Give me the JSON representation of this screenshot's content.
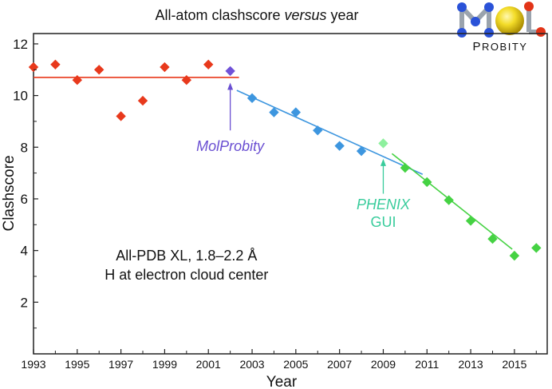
{
  "chart_data": {
    "type": "scatter",
    "title_prefix": "All-atom clashscore ",
    "title_emphasis": "versus",
    "title_suffix": " year",
    "xlabel": "Year",
    "ylabel": "Clashscore",
    "xlim": [
      1993,
      2016.5
    ],
    "ylim": [
      0,
      12.4
    ],
    "xticks": [
      1993,
      1995,
      1997,
      1999,
      2001,
      2003,
      2005,
      2007,
      2009,
      2011,
      2013,
      2015
    ],
    "yticks": [
      2,
      4,
      6,
      8,
      10,
      12
    ],
    "grid": false,
    "series": [
      {
        "color": "#e8391c",
        "points": [
          [
            1993,
            11.1
          ],
          [
            1994,
            11.2
          ],
          [
            1995,
            10.6
          ],
          [
            1996,
            11.0
          ],
          [
            1997,
            9.2
          ],
          [
            1998,
            9.8
          ],
          [
            1999,
            11.1
          ],
          [
            2000,
            10.6
          ],
          [
            2001,
            11.2
          ]
        ]
      },
      {
        "color": "#7052d8",
        "points": [
          [
            2002,
            10.95
          ]
        ]
      },
      {
        "color": "#3d96df",
        "points": [
          [
            2003,
            9.9
          ],
          [
            2004,
            9.35
          ],
          [
            2005,
            9.35
          ],
          [
            2006,
            8.65
          ],
          [
            2007,
            8.05
          ],
          [
            2008,
            7.85
          ]
        ]
      },
      {
        "color": "#8ef09e",
        "points": [
          [
            2009,
            8.15
          ]
        ]
      },
      {
        "color": "#45d243",
        "points": [
          [
            2010,
            7.2
          ],
          [
            2011,
            6.65
          ],
          [
            2012,
            5.95
          ],
          [
            2013,
            5.15
          ],
          [
            2014,
            4.45
          ],
          [
            2015,
            3.8
          ],
          [
            2016,
            4.1
          ]
        ]
      }
    ],
    "trendlines": [
      {
        "color": "#e8391c",
        "from": [
          1993,
          10.7
        ],
        "to": [
          2002.4,
          10.7
        ]
      },
      {
        "color": "#3d96df",
        "from": [
          2002.3,
          10.2
        ],
        "to": [
          2010.8,
          6.95
        ]
      },
      {
        "color": "#45d243",
        "from": [
          2009.4,
          7.75
        ],
        "to": [
          2014.9,
          4.05
        ]
      }
    ],
    "annotations": [
      {
        "lines": [
          "MolProbity"
        ],
        "color": "#6a4fd2",
        "italic": true,
        "text_at": [
          2002,
          7.85
        ],
        "arrow_from": [
          2002,
          8.65
        ],
        "arrow_to": [
          2002,
          10.5
        ]
      },
      {
        "lines": [
          "PHENIX",
          "GUI"
        ],
        "color": "#39cc9c",
        "italic_first_line": true,
        "text_at": [
          2009,
          5.6
        ],
        "arrow_from": [
          2009,
          6.2
        ],
        "arrow_to": [
          2009,
          7.55
        ]
      }
    ],
    "note_lines": [
      "All-PDB XL, 1.8–2.2 Å",
      "H at electron cloud center"
    ],
    "note_at": [
      2000,
      3.8
    ]
  },
  "logo": {
    "letters_first": "P",
    "letters_rest": "ROBITY"
  }
}
